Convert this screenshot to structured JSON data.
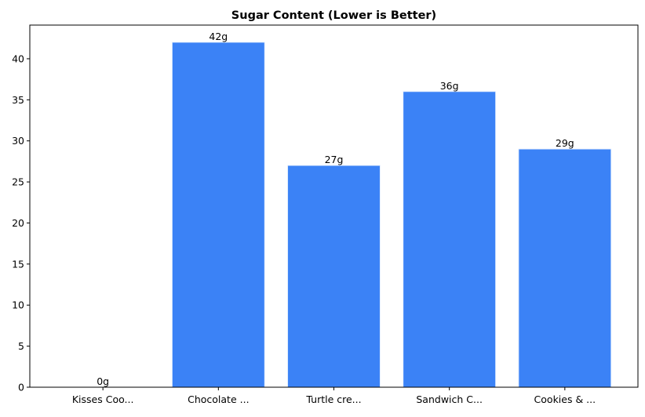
{
  "chart_data": {
    "type": "bar",
    "title": "Sugar Content (Lower is Better)",
    "xlabel": "",
    "ylabel": "",
    "categories": [
      "Kisses Coo...",
      "Chocolate ...",
      "Turtle cre...",
      "Sandwich C...",
      "Cookies & ..."
    ],
    "values": [
      0,
      42,
      27,
      36,
      29
    ],
    "data_labels": [
      "0g",
      "42g",
      "27g",
      "36g",
      "29g"
    ],
    "ylim": [
      0,
      44.1
    ],
    "yticks": [
      0,
      5,
      10,
      15,
      20,
      25,
      30,
      35,
      40
    ],
    "grid": false,
    "bar_color": "#3b82f6"
  }
}
